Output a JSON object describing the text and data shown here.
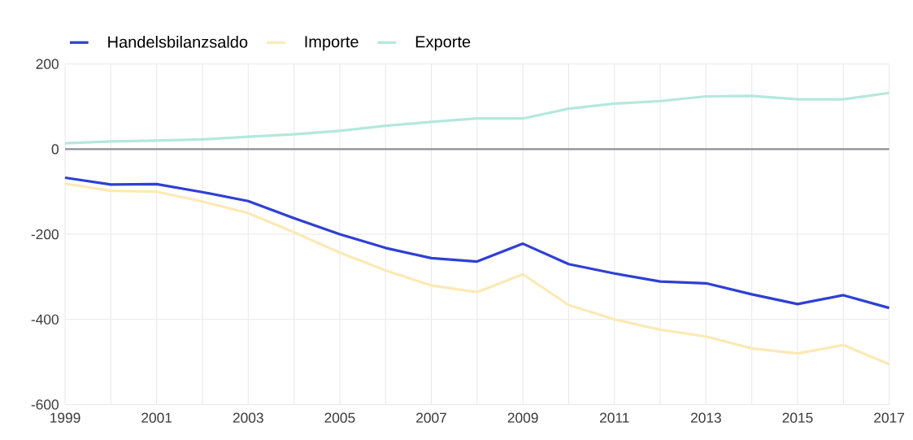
{
  "chart_data": {
    "type": "line",
    "x": [
      1999,
      2000,
      2001,
      2002,
      2003,
      2004,
      2005,
      2006,
      2007,
      2008,
      2009,
      2010,
      2011,
      2012,
      2013,
      2014,
      2015,
      2016,
      2017
    ],
    "series": [
      {
        "name": "Handelsbilanzsaldo",
        "color": "#2e3fd6",
        "values": [
          -67,
          -83,
          -82,
          -101,
          -122,
          -162,
          -200,
          -232,
          -256,
          -264,
          -222,
          -270,
          -292,
          -311,
          -315,
          -341,
          -364,
          -343,
          -373
        ]
      },
      {
        "name": "Importe",
        "color": "#fce9b4",
        "values": [
          -81,
          -98,
          -100,
          -123,
          -150,
          -195,
          -243,
          -285,
          -320,
          -336,
          -294,
          -366,
          -400,
          -424,
          -440,
          -468,
          -480,
          -460,
          -505
        ]
      },
      {
        "name": "Exporte",
        "color": "#b4e8dc",
        "values": [
          14,
          18,
          20,
          23,
          29,
          35,
          43,
          55,
          64,
          72,
          72,
          95,
          107,
          113,
          124,
          125,
          117,
          117,
          132
        ]
      }
    ],
    "xlim": [
      1999,
      2017
    ],
    "xticks": [
      1999,
      {
        "value": 2000,
        "label": null
      },
      2001,
      {
        "value": 2002,
        "label": null
      },
      2003,
      {
        "value": 2004,
        "label": null
      },
      2005,
      {
        "value": 2006,
        "label": null
      },
      2007,
      {
        "value": 2008,
        "label": null
      },
      2009,
      {
        "value": 2010,
        "label": null
      },
      2011,
      {
        "value": 2012,
        "label": null
      },
      2013,
      {
        "value": 2014,
        "label": null
      },
      2015,
      {
        "value": 2016,
        "label": null
      },
      2017
    ],
    "ylim": [
      -600,
      200
    ],
    "yticks": [
      -600,
      -400,
      -200,
      0,
      200
    ],
    "ref_lines": [
      {
        "axis": "y",
        "value": 0,
        "color": "#8e8e96"
      }
    ],
    "grid": true,
    "legend": "top left",
    "marker": "none",
    "line_style": "solid"
  }
}
